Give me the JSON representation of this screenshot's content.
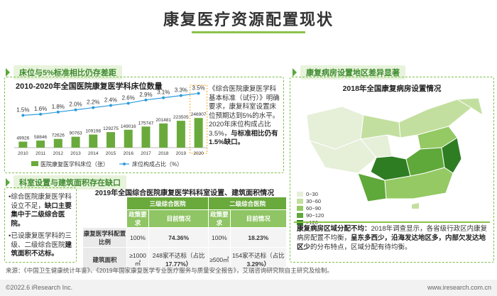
{
  "title": "康复医疗资源配置现状",
  "left_top": {
    "section_title": "床位与5%标准相比仍存差距",
    "chart_title": "2010-2020年全国医院康复医学科床位数量",
    "chart_data": {
      "type": "bar",
      "categories": [
        "2010",
        "2011",
        "2012",
        "2013",
        "2014",
        "2015",
        "2016",
        "2017",
        "2018",
        "2019",
        "2020"
      ],
      "series": [
        {
          "name": "医院康复医学科床位（张）",
          "values": [
            49926,
            58846,
            72626,
            90763,
            109198,
            129275,
            149016,
            175747,
            201481,
            223505,
            246907
          ],
          "labels": [
            "49926",
            "58846",
            "72626",
            "90763",
            "109198",
            "129275",
            "149016",
            "175747",
            "201481",
            "223505",
            "246907"
          ]
        },
        {
          "name": "床位构成占比（%）",
          "values": [
            1.5,
            1.6,
            1.8,
            2.0,
            2.2,
            2.4,
            2.6,
            2.9,
            3.1,
            3.3,
            3.5
          ],
          "labels": [
            "1.5%",
            "1.6%",
            "1.8%",
            "2.0%",
            "2.2%",
            "2.4%",
            "2.6%",
            "2.9%",
            "3.1%",
            "3.3%",
            "3.5%"
          ]
        }
      ]
    },
    "note": {
      "p1": "《综合医院康复医学科基本标准（试行）》明确要求，康复科室设置床位预期达到5%的水平。2020年床位构成占比3.5%，",
      "p1_bold": "与标准相比仍有1.5%缺口。"
    }
  },
  "left_bottom": {
    "section_title": "科室设置与建筑面积存在缺口",
    "note_a": "综合医院康复医学科设立不足，",
    "note_a_bold": "缺口主要集中于二级综合医院。",
    "note_b": "已设康复医学科的三级、二级综合医院",
    "note_b_bold": "建筑面积不达标。",
    "table_title": "2019年全国综合医院康复医学科科室设置、建筑面积情况",
    "table": {
      "col_groups": [
        "三级综合医院",
        "二级综合医院"
      ],
      "sub_headers": [
        "政策要求",
        "目前情况",
        "政策要求",
        "目前情况"
      ],
      "rows": [
        {
          "label": "康复医学科配置比例",
          "cells": [
            "100%",
            "74.36%",
            "100%",
            "18.23%"
          ]
        },
        {
          "label": "建筑面积",
          "cells": [
            "≥1000㎡",
            "248家不达标（占比",
            "≥500㎡",
            "154家不达标（占比"
          ],
          "bold": [
            "",
            "17.77%）",
            "",
            "3.29%）"
          ]
        }
      ]
    }
  },
  "right": {
    "section_title": "康复病房设置地区差异显著",
    "map_title": "2018年全国康复病房设置情况",
    "legend": [
      "0~30",
      "30~60",
      "60~90",
      "90~120",
      ">120"
    ],
    "legend_colors": [
      "#e6efd8",
      "#c3df9f",
      "#94c964",
      "#5fa83a",
      "#2e7d22"
    ],
    "note_bold": "康复病房区域分配不均：",
    "note_1": "2018年调查显示，各省级行政区内康复病房配置不均衡，",
    "note_2": "呈东多西少，沿海发达地区多，内部欠发达地区少",
    "note_3": "的分布特点，区域分配有待均衡。"
  },
  "source": "来源：《中国卫生健康统计年鉴》、《2019年国家康复医学专业医疗服务与质量安全报告》，艾瑞咨询研究院自主研究及绘制。",
  "footer": {
    "left": "©2022.6 iResearch Inc.",
    "right": "www.iresearch.com.cn"
  }
}
